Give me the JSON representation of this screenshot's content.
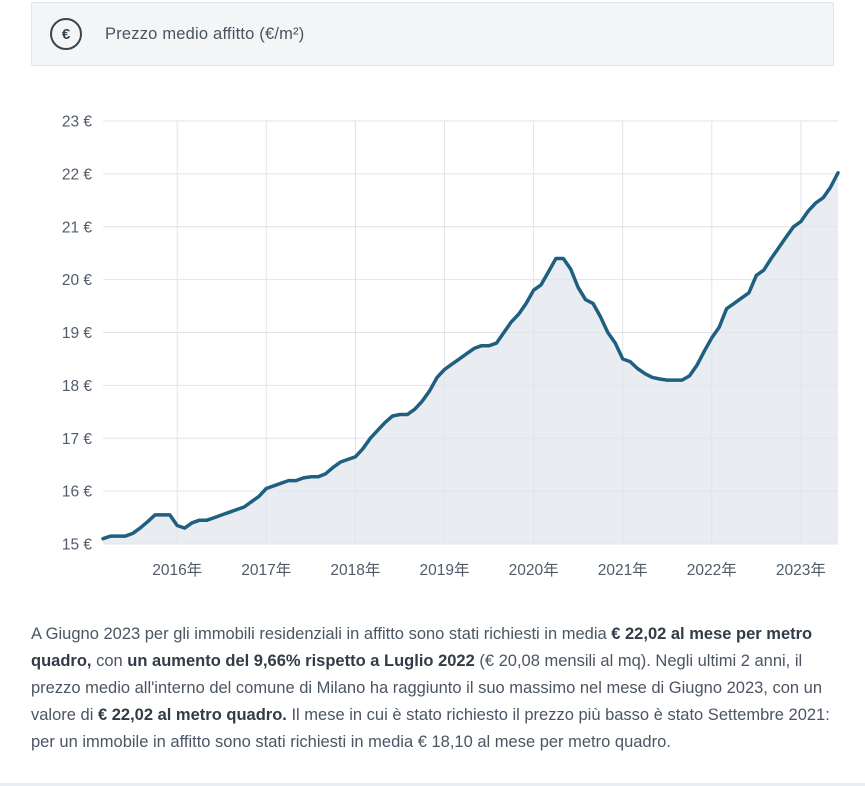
{
  "header": {
    "icon_glyph": "€",
    "title": "Prezzo medio affitto (€/m²)"
  },
  "chart_data": {
    "type": "area",
    "title": "Prezzo medio affitto (€/m²)",
    "x_unit": "month",
    "ylim": [
      15,
      23
    ],
    "y_ticks": [
      15,
      16,
      17,
      18,
      19,
      20,
      21,
      22,
      23
    ],
    "y_suffix": " €",
    "grid": true,
    "legend": "none",
    "line_color": "#1f5f80",
    "fill_color": "#e9edf2",
    "grid_color": "#e1e4e8",
    "x_tick_labels": [
      "2016年",
      "2017年",
      "2018年",
      "2019年",
      "2020年",
      "2021年",
      "2022年",
      "2023年"
    ],
    "x_tick_indices": [
      10,
      22,
      34,
      46,
      58,
      70,
      82,
      94
    ],
    "x_months": [
      "2015-03",
      "2015-04",
      "2015-05",
      "2015-06",
      "2015-07",
      "2015-08",
      "2015-09",
      "2015-10",
      "2015-11",
      "2015-12",
      "2016-01",
      "2016-02",
      "2016-03",
      "2016-04",
      "2016-05",
      "2016-06",
      "2016-07",
      "2016-08",
      "2016-09",
      "2016-10",
      "2016-11",
      "2016-12",
      "2017-01",
      "2017-02",
      "2017-03",
      "2017-04",
      "2017-05",
      "2017-06",
      "2017-07",
      "2017-08",
      "2017-09",
      "2017-10",
      "2017-11",
      "2017-12",
      "2018-01",
      "2018-02",
      "2018-03",
      "2018-04",
      "2018-05",
      "2018-06",
      "2018-07",
      "2018-08",
      "2018-09",
      "2018-10",
      "2018-11",
      "2018-12",
      "2019-01",
      "2019-02",
      "2019-03",
      "2019-04",
      "2019-05",
      "2019-06",
      "2019-07",
      "2019-08",
      "2019-09",
      "2019-10",
      "2019-11",
      "2019-12",
      "2020-01",
      "2020-02",
      "2020-03",
      "2020-04",
      "2020-05",
      "2020-06",
      "2020-07",
      "2020-08",
      "2020-09",
      "2020-10",
      "2020-11",
      "2020-12",
      "2021-01",
      "2021-02",
      "2021-03",
      "2021-04",
      "2021-05",
      "2021-06",
      "2021-07",
      "2021-08",
      "2021-09",
      "2021-10",
      "2021-11",
      "2021-12",
      "2022-01",
      "2022-02",
      "2022-03",
      "2022-04",
      "2022-05",
      "2022-06",
      "2022-07",
      "2022-08",
      "2022-09",
      "2022-10",
      "2022-11",
      "2022-12",
      "2023-01",
      "2023-02",
      "2023-03",
      "2023-04",
      "2023-05",
      "2023-06"
    ],
    "series": [
      {
        "name": "Prezzo medio affitto (€/m²)",
        "values": [
          15.1,
          15.15,
          15.15,
          15.15,
          15.2,
          15.3,
          15.42,
          15.55,
          15.55,
          15.55,
          15.35,
          15.3,
          15.4,
          15.45,
          15.45,
          15.5,
          15.55,
          15.6,
          15.65,
          15.7,
          15.8,
          15.9,
          16.05,
          16.1,
          16.15,
          16.2,
          16.2,
          16.25,
          16.27,
          16.27,
          16.33,
          16.45,
          16.55,
          16.6,
          16.65,
          16.8,
          17.0,
          17.15,
          17.3,
          17.42,
          17.45,
          17.45,
          17.55,
          17.7,
          17.9,
          18.15,
          18.3,
          18.4,
          18.5,
          18.6,
          18.7,
          18.75,
          18.75,
          18.8,
          19.0,
          19.2,
          19.35,
          19.55,
          19.8,
          19.9,
          20.15,
          20.4,
          20.4,
          20.2,
          19.85,
          19.62,
          19.55,
          19.3,
          19.0,
          18.8,
          18.5,
          18.45,
          18.32,
          18.22,
          18.15,
          18.12,
          18.1,
          18.1,
          18.1,
          18.18,
          18.38,
          18.65,
          18.9,
          19.1,
          19.45,
          19.55,
          19.65,
          19.75,
          20.08,
          20.18,
          20.4,
          20.6,
          20.8,
          21.0,
          21.1,
          21.3,
          21.45,
          21.55,
          21.75,
          22.02
        ]
      }
    ],
    "annotations": {
      "latest": {
        "month": "Giugno 2023",
        "value": "€ 22,02"
      },
      "max": {
        "month": "Giugno 2023",
        "value": "€ 22,02"
      },
      "min": {
        "month": "Settembre 2021",
        "value": "€ 18,10"
      },
      "yoy_reference": {
        "month": "Luglio 2022",
        "value": "€ 20,08",
        "change": "+9,66%"
      }
    }
  },
  "summary": {
    "runs": [
      {
        "bold": false,
        "text": "A Giugno 2023 per gli immobili residenziali in affitto sono stati richiesti in media "
      },
      {
        "bold": true,
        "text": "€ 22,02 al mese per metro quadro,"
      },
      {
        "bold": false,
        "text": " con "
      },
      {
        "bold": true,
        "text": "un aumento del 9,66% rispetto a Luglio 2022"
      },
      {
        "bold": false,
        "text": " (€ 20,08 mensili al mq). Negli ultimi 2 anni, il prezzo medio all'interno del comune di Milano ha raggiunto il suo massimo nel mese di Giugno 2023, con un valore di "
      },
      {
        "bold": true,
        "text": "€ 22,02 al metro quadro."
      },
      {
        "bold": false,
        "text": " Il mese in cui è stato richiesto il prezzo più basso è stato Settembre 2021: per un immobile in affitto sono stati richiesti in media € 18,10 al mese per metro quadro."
      }
    ]
  }
}
